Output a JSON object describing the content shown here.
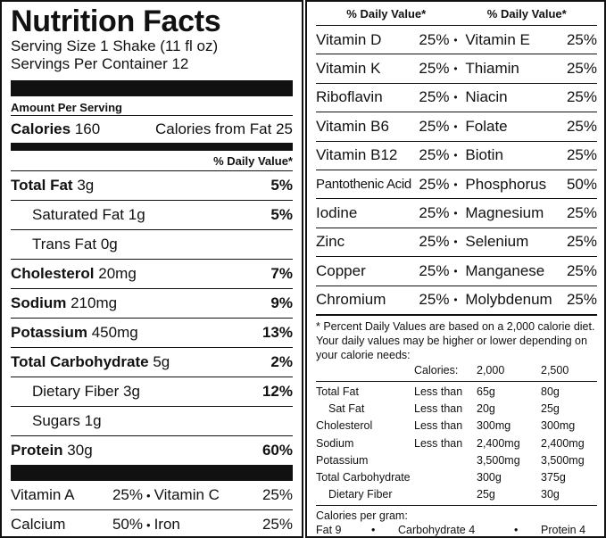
{
  "label": {
    "title": "Nutrition Facts",
    "serving_size": "Serving Size 1 Shake (11 fl oz)",
    "servings_per_container": "Servings Per Container 12",
    "amount_per_serving": "Amount Per Serving",
    "calories_label": "Calories",
    "calories_value": "160",
    "calories_from_fat_label": "Calories from Fat",
    "calories_from_fat_value": "25",
    "daily_value_header": "% Daily Value*"
  },
  "nutrients": [
    {
      "name": "Total Fat",
      "amount": "3g",
      "dv": "5%"
    },
    {
      "name": "Saturated Fat",
      "amount": "1g",
      "dv": "5%"
    },
    {
      "name": "Trans Fat",
      "amount": "0g",
      "dv": ""
    },
    {
      "name": "Cholesterol",
      "amount": "20mg",
      "dv": "7%"
    },
    {
      "name": "Sodium",
      "amount": "210mg",
      "dv": "9%"
    },
    {
      "name": "Potassium",
      "amount": "450mg",
      "dv": "13%"
    },
    {
      "name": "Total Carbohydrate",
      "amount": "5g",
      "dv": "2%"
    },
    {
      "name": "Dietary Fiber",
      "amount": "3g",
      "dv": "12%"
    },
    {
      "name": "Sugars",
      "amount": "1g",
      "dv": ""
    },
    {
      "name": "Protein",
      "amount": "30g",
      "dv": "60%"
    }
  ],
  "left_vitamins": [
    {
      "a_name": "Vitamin A",
      "a_dv": "25%",
      "b_name": "Vitamin C",
      "b_dv": "25%"
    },
    {
      "a_name": "Calcium",
      "a_dv": "50%",
      "b_name": "Iron",
      "b_dv": "25%"
    }
  ],
  "right": {
    "header_1": "% Daily Value*",
    "header_2": "% Daily Value*",
    "rows": [
      {
        "a_name": "Vitamin D",
        "a_dv": "25%",
        "b_name": "Vitamin E",
        "b_dv": "25%"
      },
      {
        "a_name": "Vitamin K",
        "a_dv": "25%",
        "b_name": "Thiamin",
        "b_dv": "25%"
      },
      {
        "a_name": "Riboflavin",
        "a_dv": "25%",
        "b_name": "Niacin",
        "b_dv": "25%"
      },
      {
        "a_name": "Vitamin B6",
        "a_dv": "25%",
        "b_name": "Folate",
        "b_dv": "25%"
      },
      {
        "a_name": "Vitamin B12",
        "a_dv": "25%",
        "b_name": "Biotin",
        "b_dv": "25%"
      },
      {
        "a_name": "Pantothenic Acid",
        "a_dv": "25%",
        "b_name": "Phosphorus",
        "b_dv": "50%"
      },
      {
        "a_name": "Iodine",
        "a_dv": "25%",
        "b_name": "Magnesium",
        "b_dv": "25%"
      },
      {
        "a_name": "Zinc",
        "a_dv": "25%",
        "b_name": "Selenium",
        "b_dv": "25%"
      },
      {
        "a_name": "Copper",
        "a_dv": "25%",
        "b_name": "Manganese",
        "b_dv": "25%"
      },
      {
        "a_name": "Chromium",
        "a_dv": "25%",
        "b_name": "Molybdenum",
        "b_dv": "25%"
      }
    ],
    "footnote": "* Percent Daily Values are based on a 2,000 calorie diet. Your daily values may be higher or lower depending on your calorie needs:",
    "calories_label": "Calories:",
    "cal_2000": "2,000",
    "cal_2500": "2,500",
    "dv_table": [
      {
        "name": "Total Fat",
        "limit": "Less than",
        "v2000": "65g",
        "v2500": "80g",
        "sub": false
      },
      {
        "name": "Sat Fat",
        "limit": "Less than",
        "v2000": "20g",
        "v2500": "25g",
        "sub": true
      },
      {
        "name": "Cholesterol",
        "limit": "Less than",
        "v2000": "300mg",
        "v2500": "300mg",
        "sub": false
      },
      {
        "name": "Sodium",
        "limit": "Less than",
        "v2000": "2,400mg",
        "v2500": "2,400mg",
        "sub": false
      },
      {
        "name": "Potassium",
        "limit": "",
        "v2000": "3,500mg",
        "v2500": "3,500mg",
        "sub": false
      },
      {
        "name": "Total Carbohydrate",
        "limit": "",
        "v2000": "300g",
        "v2500": "375g",
        "sub": false
      },
      {
        "name": "Dietary Fiber",
        "limit": "",
        "v2000": "25g",
        "v2500": "30g",
        "sub": true
      }
    ],
    "cal_per_gram_label": "Calories per gram:",
    "fat_label": "Fat 9",
    "carb_label": "Carbohydrate 4",
    "protein_label": "Protein 4",
    "bullet": "•"
  }
}
